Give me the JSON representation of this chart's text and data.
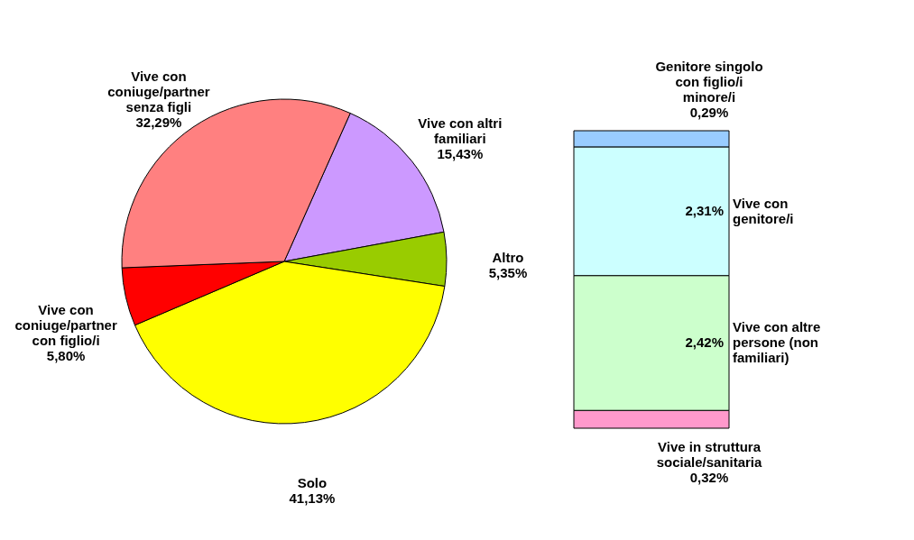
{
  "chart_data": [
    {
      "type": "pie",
      "categories": [
        "Vive con altri familiari",
        "Altro",
        "Solo",
        "Vive con coniuge/partner con figlio/i",
        "Vive con coniuge/partner senza figli"
      ],
      "values": [
        15.43,
        5.35,
        41.13,
        5.8,
        32.29
      ],
      "colors": [
        "#cc99ff",
        "#99cc00",
        "#ffff00",
        "#ff0000",
        "#ff8080"
      ],
      "value_labels": [
        "15,43%",
        "5,35%",
        "41,13%",
        "5,80%",
        "32,29%"
      ],
      "legend": false
    },
    {
      "type": "bar",
      "stacked": true,
      "categories": [
        null
      ],
      "legend": false,
      "series": [
        {
          "name": "Vive in struttura sociale/sanitaria",
          "color": "#ff99cc",
          "values": [
            0.32
          ],
          "value_labels": [
            "0,32%"
          ]
        },
        {
          "name": "Vive con altre persone (non familiari)",
          "color": "#ccffcc",
          "values": [
            2.42
          ],
          "value_labels": [
            "2,42%"
          ]
        },
        {
          "name": "Vive con genitore/i",
          "color": "#ccffff",
          "values": [
            2.31
          ],
          "value_labels": [
            "2,31%"
          ]
        },
        {
          "name": "Genitore singolo con figlio/i minore/i",
          "color": "#99ccff",
          "values": [
            0.29
          ],
          "value_labels": [
            "0,29%"
          ]
        }
      ]
    }
  ]
}
